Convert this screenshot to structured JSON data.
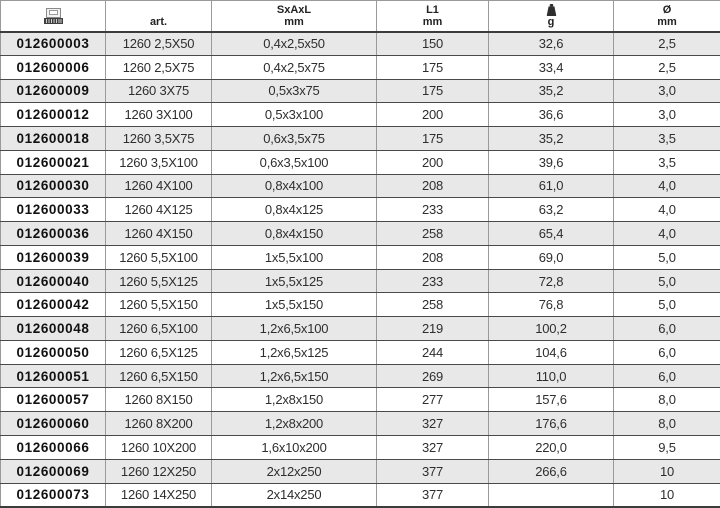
{
  "table": {
    "columns": [
      {
        "key": "ean",
        "label": "",
        "unit": "",
        "icon": "ean-barcode-icon"
      },
      {
        "key": "art",
        "label": "art.",
        "unit": ""
      },
      {
        "key": "sxaxl",
        "label": "SxAxL",
        "unit": "mm"
      },
      {
        "key": "l1",
        "label": "L1",
        "unit": "mm"
      },
      {
        "key": "weight",
        "label": "",
        "unit": "g",
        "icon": "weight-icon"
      },
      {
        "key": "dia",
        "label": "Ø",
        "unit": "mm"
      }
    ],
    "rows": [
      [
        "012600003",
        "1260 2,5X50",
        "0,4x2,5x50",
        "150",
        "32,6",
        "2,5"
      ],
      [
        "012600006",
        "1260 2,5X75",
        "0,4x2,5x75",
        "175",
        "33,4",
        "2,5"
      ],
      [
        "012600009",
        "1260 3X75",
        "0,5x3x75",
        "175",
        "35,2",
        "3,0"
      ],
      [
        "012600012",
        "1260 3X100",
        "0,5x3x100",
        "200",
        "36,6",
        "3,0"
      ],
      [
        "012600018",
        "1260 3,5X75",
        "0,6x3,5x75",
        "175",
        "35,2",
        "3,5"
      ],
      [
        "012600021",
        "1260 3,5X100",
        "0,6x3,5x100",
        "200",
        "39,6",
        "3,5"
      ],
      [
        "012600030",
        "1260 4X100",
        "0,8x4x100",
        "208",
        "61,0",
        "4,0"
      ],
      [
        "012600033",
        "1260 4X125",
        "0,8x4x125",
        "233",
        "63,2",
        "4,0"
      ],
      [
        "012600036",
        "1260 4X150",
        "0,8x4x150",
        "258",
        "65,4",
        "4,0"
      ],
      [
        "012600039",
        "1260 5,5X100",
        "1x5,5x100",
        "208",
        "69,0",
        "5,0"
      ],
      [
        "012600040",
        "1260 5,5X125",
        "1x5,5x125",
        "233",
        "72,8",
        "5,0"
      ],
      [
        "012600042",
        "1260 5,5X150",
        "1x5,5x150",
        "258",
        "76,8",
        "5,0"
      ],
      [
        "012600048",
        "1260 6,5X100",
        "1,2x6,5x100",
        "219",
        "100,2",
        "6,0"
      ],
      [
        "012600050",
        "1260 6,5X125",
        "1,2x6,5x125",
        "244",
        "104,6",
        "6,0"
      ],
      [
        "012600051",
        "1260 6,5X150",
        "1,2x6,5x150",
        "269",
        "110,0",
        "6,0"
      ],
      [
        "012600057",
        "1260 8X150",
        "1,2x8x150",
        "277",
        "157,6",
        "8,0"
      ],
      [
        "012600060",
        "1260 8X200",
        "1,2x8x200",
        "327",
        "176,6",
        "8,0"
      ],
      [
        "012600066",
        "1260 10X200",
        "1,6x10x200",
        "327",
        "220,0",
        "9,5"
      ],
      [
        "012600069",
        "1260 12X250",
        "2x12x250",
        "377",
        "266,6",
        "10"
      ],
      [
        "012600073",
        "1260 14X250",
        "2x14x250",
        "377",
        "",
        "10"
      ]
    ]
  },
  "colors": {
    "stripe_row_bg": "#e8e8e8",
    "row_separator": "#4a4a4a",
    "column_separator": "#9a9a9a",
    "ean_text": "#111111",
    "cell_text": "#2e2e2e"
  }
}
